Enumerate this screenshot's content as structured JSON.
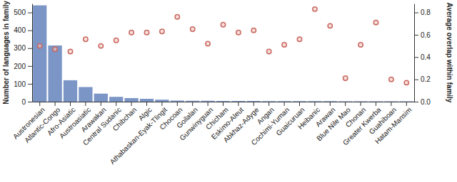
{
  "chart_data": {
    "type": "bar",
    "categories": [
      "Austronesian",
      "Atlantic-Congo",
      "Afro-Asiatic",
      "Austroasiatic",
      "Arawakan",
      "Central Sudanic",
      "Chibchan",
      "Algic",
      "Athabaskan-Eyak-Tlingit",
      "Chocoan",
      "Goilalan",
      "Gunwinyguan",
      "Chicham",
      "Eskimo-Aleut",
      "Abkhaz-Adyge",
      "Angan",
      "Cochimi-Yuman",
      "Guaicuruan",
      "Heibanic",
      "Arawan",
      "Blue Nile Mao",
      "Chonan",
      "Greater Kwerba",
      "Guahiboan",
      "Hatam-Mansim"
    ],
    "ylabel": "Number of languages in family",
    "y2label": "Average overlap within family",
    "series": [
      {
        "type": "bar",
        "color": "#7b95c6",
        "values": [
          540,
          315,
          120,
          82,
          45,
          27,
          20,
          16,
          11,
          6,
          5,
          5,
          4,
          4,
          4,
          3,
          3,
          3,
          3,
          3,
          2,
          2,
          2,
          2,
          2
        ]
      },
      {
        "type": "scatter",
        "axis": "y2",
        "color": "#c9685f",
        "marker": "circle",
        "values": [
          0.5,
          0.47,
          0.45,
          0.56,
          0.5,
          0.55,
          0.62,
          0.62,
          0.63,
          0.76,
          0.65,
          0.52,
          0.69,
          0.62,
          0.64,
          0.45,
          0.51,
          0.56,
          0.83,
          0.68,
          0.21,
          0.51,
          0.71,
          0.2,
          0.17
        ]
      }
    ],
    "ylim": [
      0,
      550
    ],
    "yticks": [
      0,
      100,
      200,
      300,
      400,
      500
    ],
    "y2lim": [
      0,
      0.88
    ],
    "y2ticks": [
      {
        "value": 0,
        "label": "0.0"
      },
      0.2,
      0.4,
      0.6,
      0.8
    ],
    "grid": false
  }
}
